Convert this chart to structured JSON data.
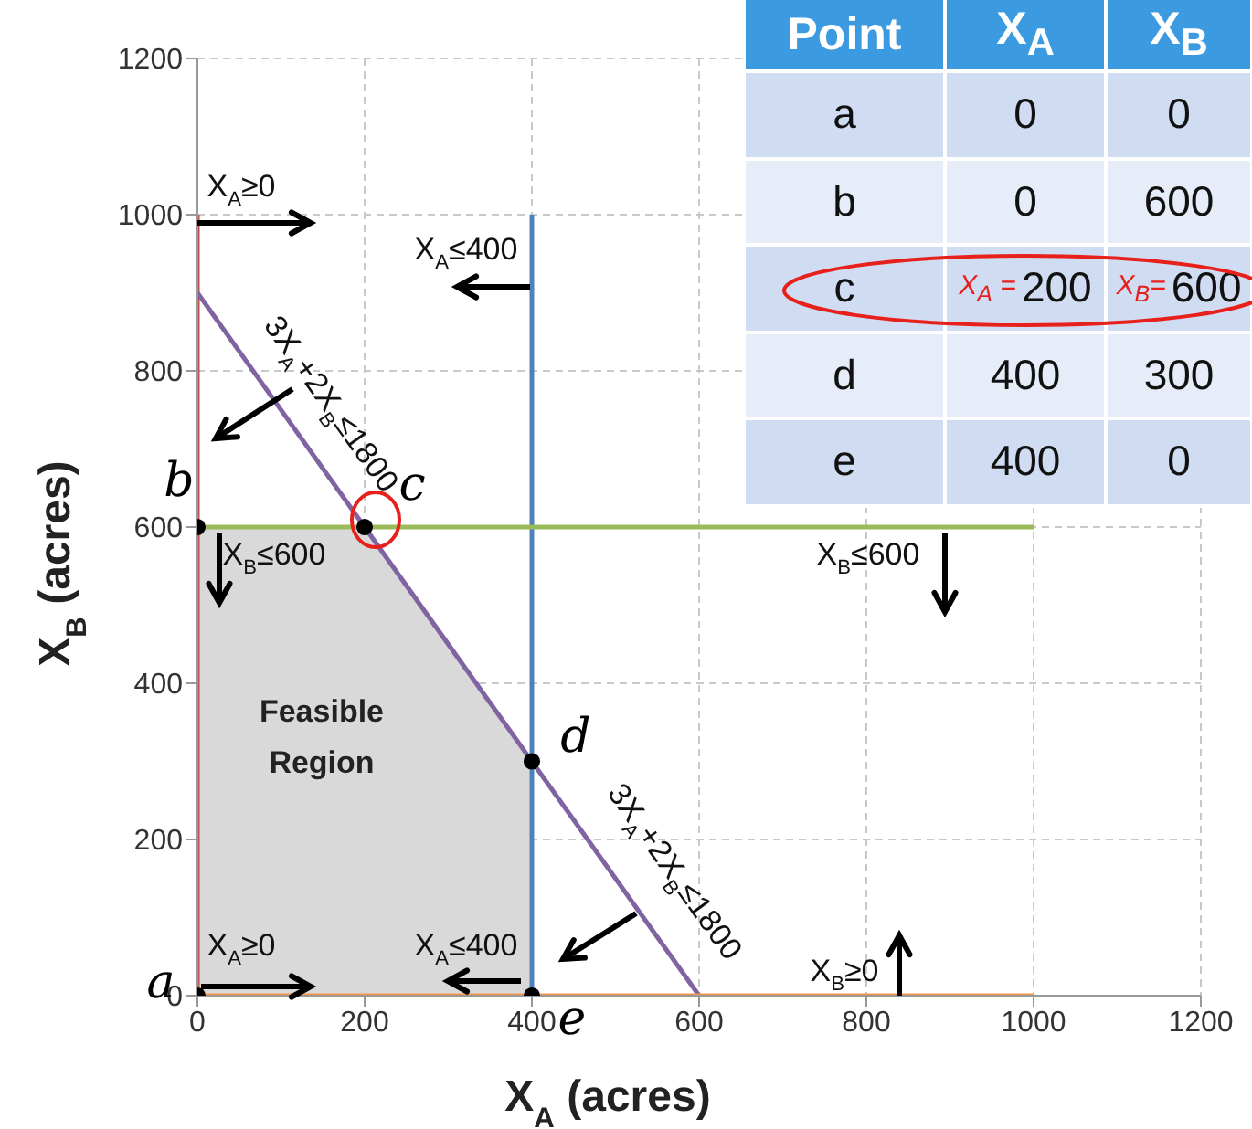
{
  "chart_data": {
    "type": "line",
    "xlabel": "X$_{A}$ (acres)",
    "ylabel": "X$_{B}$ (acres)",
    "xlim": [
      0,
      1200
    ],
    "ylim": [
      0,
      1200
    ],
    "xticks": [
      0,
      200,
      400,
      600,
      800,
      1000,
      1200
    ],
    "yticks": [
      0,
      200,
      400,
      600,
      800,
      1000,
      1200
    ],
    "grid": true,
    "marker": "none",
    "series": [
      {
        "type": "area",
        "x": [
          0,
          200,
          400,
          400
        ],
        "values": [
          600,
          600,
          300,
          0
        ],
        "color": "#d9d9d9"
      },
      {
        "x": [
          0,
          0
        ],
        "values": [
          0,
          1000
        ],
        "color": "#c0504d"
      },
      {
        "x": [
          400,
          400
        ],
        "values": [
          0,
          1000
        ],
        "color": "#4f81bd"
      },
      {
        "x": [
          0,
          600
        ],
        "values": [
          900,
          0
        ],
        "color": "#8064a2"
      },
      {
        "x": [
          0,
          1000
        ],
        "values": [
          600,
          600
        ],
        "color": "#9bbb59"
      },
      {
        "x": [
          0,
          1000
        ],
        "values": [
          0,
          0
        ],
        "color": "#f79646"
      },
      {
        "type": "scatter",
        "marker": "circle",
        "x": [
          0,
          0,
          200,
          400,
          400
        ],
        "values": [
          0,
          600,
          600,
          300,
          0
        ],
        "color": "#000000"
      }
    ],
    "annotations": [
      {
        "text": "X$_{A}$≥0",
        "x": 0,
        "y": 1000
      },
      "X$_{A}$≤400",
      "3X$_{A}$+2X$_{B}$≤1800",
      "X$_{B}$≤600",
      "X$_{B}$≤600",
      "Feasible Region",
      "X$_{A}$≥0",
      "X$_{A}$≤400",
      "3X$_{A}$+2X$_{B}$≤1800",
      "X$_{B}$≥0",
      {
        "text": "a",
        "x": 0,
        "y": 0
      },
      {
        "text": "b",
        "x": 0,
        "y": 600
      },
      {
        "text": "c",
        "x": 200,
        "y": 600
      },
      {
        "text": "d",
        "x": 400,
        "y": 300
      },
      {
        "text": "e",
        "x": 400,
        "y": 0
      },
      "Point",
      "X$_{A}$",
      "X$_{B}$",
      "a",
      "0",
      "0",
      "b",
      "0",
      "600",
      "c",
      "200",
      "600",
      "d",
      "400",
      "300",
      "e",
      "400",
      "0",
      "X$_{A}$ =",
      "X$_{B}$="
    ]
  }
}
